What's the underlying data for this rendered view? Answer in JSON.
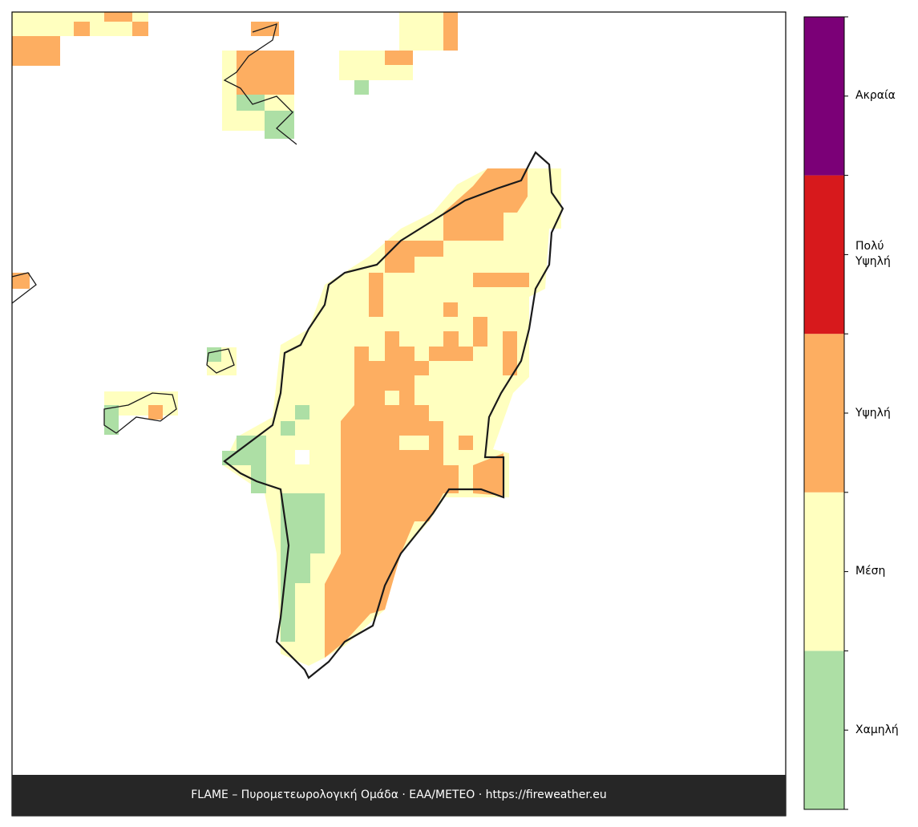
{
  "map": {
    "footer": "FLAME – Πυρομετεωρολογική Ομάδα · ΕΑΑ/METEO · https://fireweather.eu",
    "legend": [
      {
        "label": "Χαμηλή",
        "color": "#addfa5"
      },
      {
        "label": "Μέση",
        "color": "#ffffbf"
      },
      {
        "label": "Υψηλή",
        "color": "#fdae61"
      },
      {
        "label": "Πολύ Υψηλή",
        "color": "#d7191c"
      },
      {
        "label": "Ακραία",
        "color": "#7b0077"
      }
    ]
  }
}
